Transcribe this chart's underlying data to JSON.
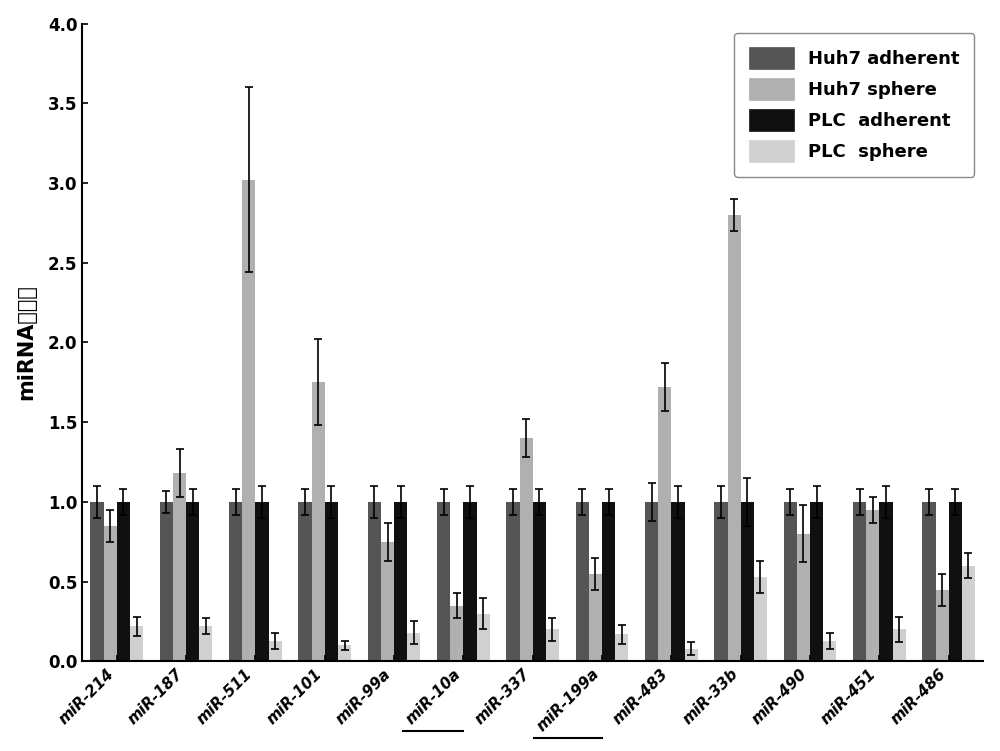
{
  "categories": [
    "miR-214",
    "miR-187",
    "miR-511",
    "miR-101",
    "miR-99a",
    "miR-10a",
    "miR-337",
    "miR-199a",
    "miR-483",
    "miR-33b",
    "miR-490",
    "miR-451",
    "miR-486"
  ],
  "series_names": [
    "Huh7 adherent",
    "Huh7 sphere",
    "PLC adherent",
    "PLC sphere"
  ],
  "legend_labels": [
    "Huh7 adherent",
    "Huh7 sphere",
    "PLC  adherent",
    "PLC  sphere"
  ],
  "values": [
    [
      1.0,
      1.0,
      1.0,
      1.0,
      1.0,
      1.0,
      1.0,
      1.0,
      1.0,
      1.0,
      1.0,
      1.0,
      1.0
    ],
    [
      0.85,
      1.18,
      3.02,
      1.75,
      0.75,
      0.35,
      1.4,
      0.55,
      1.72,
      2.8,
      0.8,
      0.95,
      0.45
    ],
    [
      1.0,
      1.0,
      1.0,
      1.0,
      1.0,
      1.0,
      1.0,
      1.0,
      1.0,
      1.0,
      1.0,
      1.0,
      1.0
    ],
    [
      0.22,
      0.22,
      0.13,
      0.1,
      0.18,
      0.3,
      0.2,
      0.17,
      0.08,
      0.53,
      0.13,
      0.2,
      0.6
    ]
  ],
  "errors": [
    [
      0.1,
      0.07,
      0.08,
      0.08,
      0.1,
      0.08,
      0.08,
      0.08,
      0.12,
      0.1,
      0.08,
      0.08,
      0.08
    ],
    [
      0.1,
      0.15,
      0.58,
      0.27,
      0.12,
      0.08,
      0.12,
      0.1,
      0.15,
      0.1,
      0.18,
      0.08,
      0.1
    ],
    [
      0.08,
      0.08,
      0.1,
      0.1,
      0.1,
      0.1,
      0.08,
      0.08,
      0.1,
      0.15,
      0.1,
      0.1,
      0.08
    ],
    [
      0.06,
      0.05,
      0.05,
      0.03,
      0.07,
      0.1,
      0.07,
      0.06,
      0.04,
      0.1,
      0.05,
      0.08,
      0.08
    ]
  ],
  "colors": [
    "#555555",
    "#b0b0b0",
    "#101010",
    "#d0d0d0"
  ],
  "ylabel": "miRNA表达量",
  "ylim": [
    0,
    4.0
  ],
  "yticks": [
    0.0,
    0.5,
    1.0,
    1.5,
    2.0,
    2.5,
    3.0,
    3.5,
    4.0
  ],
  "background_color": "#ffffff",
  "plot_bg_color": "#ffffff",
  "bar_width": 0.19,
  "underlined_categories": [
    "miR-10a",
    "miR-199a"
  ]
}
